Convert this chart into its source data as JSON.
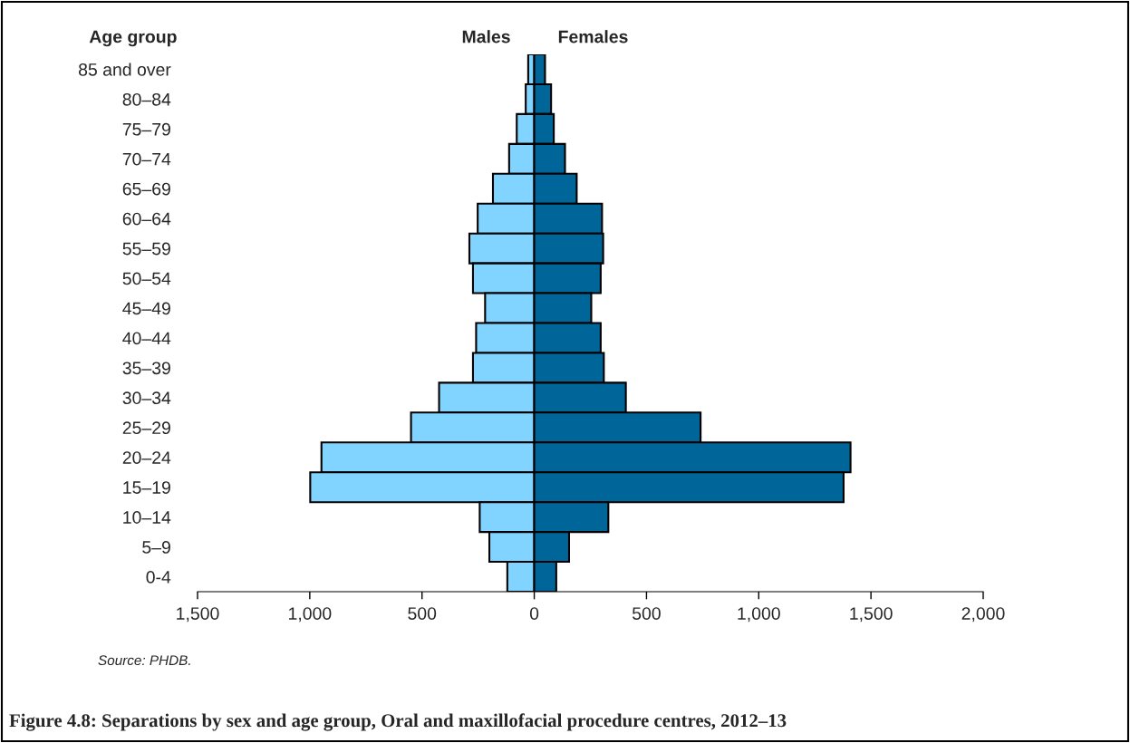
{
  "chart_data": {
    "type": "bar",
    "orientation": "horizontal",
    "title": "Figure 4.8: Separations by sex and age group, Oral and maxillofacial procedure centres, 2012–13",
    "ylabel": "Age group",
    "annotations": [
      "Source: PHDB."
    ],
    "categories": [
      "85 and over",
      "80–84",
      "75–79",
      "70–74",
      "65–69",
      "60–64",
      "55–59",
      "50–54",
      "45–49",
      "40–44",
      "35–39",
      "30–34",
      "25–29",
      "20–24",
      "15–19",
      "10–14",
      "5–9",
      "0-4"
    ],
    "series": [
      {
        "name": "Males",
        "color": "#80d4ff",
        "values": [
          -27,
          -38,
          -78,
          -112,
          -184,
          -252,
          -289,
          -273,
          -219,
          -259,
          -273,
          -424,
          -549,
          -948,
          -998,
          -243,
          -200,
          -120
        ]
      },
      {
        "name": "Females",
        "color": "#006699",
        "values": [
          48,
          75,
          87,
          137,
          189,
          302,
          307,
          296,
          254,
          296,
          310,
          408,
          741,
          1409,
          1378,
          330,
          155,
          98
        ]
      }
    ],
    "xlim": [
      -1500,
      2000
    ],
    "xticks": [
      {
        "value": -1500,
        "label": "1,500"
      },
      {
        "value": -1000,
        "label": "1,000"
      },
      {
        "value": -500,
        "label": "500"
      },
      0,
      500,
      {
        "value": 1000,
        "label": "1,000"
      },
      {
        "value": 1500,
        "label": "1,500"
      },
      {
        "value": 2000,
        "label": "2,000"
      }
    ],
    "stacked": true,
    "grid": false,
    "legend": false
  }
}
